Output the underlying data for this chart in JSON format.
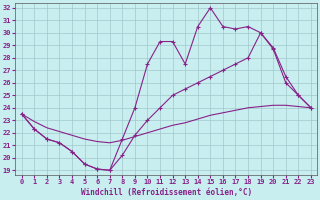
{
  "xlabel": "Windchill (Refroidissement éolien,°C)",
  "bg_color": "#c8eef0",
  "grid_color": "#a0c8cc",
  "line_color": "#882288",
  "xlim_min": -0.5,
  "xlim_max": 23.5,
  "ylim_min": 18.6,
  "ylim_max": 32.4,
  "yticks": [
    19,
    20,
    21,
    22,
    23,
    24,
    25,
    26,
    27,
    28,
    29,
    30,
    31,
    32
  ],
  "xticks": [
    0,
    1,
    2,
    3,
    4,
    5,
    6,
    7,
    8,
    9,
    10,
    11,
    12,
    13,
    14,
    15,
    16,
    17,
    18,
    19,
    20,
    21,
    22,
    23
  ],
  "line1_x": [
    0,
    1,
    2,
    3,
    4,
    5,
    6,
    7,
    8,
    9,
    10,
    11,
    12,
    13,
    14,
    15,
    16,
    17,
    18,
    19,
    20,
    21,
    22,
    23
  ],
  "line1_y": [
    23.5,
    22.3,
    21.5,
    21.2,
    20.5,
    19.5,
    19.1,
    19.0,
    21.5,
    24.0,
    27.5,
    29.3,
    29.3,
    27.5,
    30.5,
    32.0,
    30.5,
    30.3,
    30.5,
    30.0,
    28.8,
    26.5,
    25.0,
    24.0
  ],
  "line2_x": [
    0,
    1,
    2,
    3,
    4,
    5,
    6,
    7,
    8,
    9,
    10,
    11,
    12,
    13,
    14,
    15,
    16,
    17,
    18,
    19,
    20,
    21,
    22,
    23
  ],
  "line2_y": [
    23.5,
    22.3,
    21.5,
    21.2,
    20.5,
    19.5,
    19.1,
    19.0,
    20.2,
    21.8,
    23.0,
    24.0,
    25.0,
    25.5,
    26.0,
    26.5,
    27.0,
    27.5,
    28.0,
    30.0,
    28.7,
    26.0,
    25.0,
    24.0
  ],
  "line3_x": [
    0,
    1,
    2,
    3,
    4,
    5,
    6,
    7,
    8,
    9,
    10,
    11,
    12,
    13,
    14,
    15,
    16,
    17,
    18,
    19,
    20,
    21,
    22,
    23
  ],
  "line3_y": [
    23.5,
    22.9,
    22.4,
    22.1,
    21.8,
    21.5,
    21.3,
    21.2,
    21.4,
    21.7,
    22.0,
    22.3,
    22.6,
    22.8,
    23.1,
    23.4,
    23.6,
    23.8,
    24.0,
    24.1,
    24.2,
    24.2,
    24.1,
    24.0
  ]
}
